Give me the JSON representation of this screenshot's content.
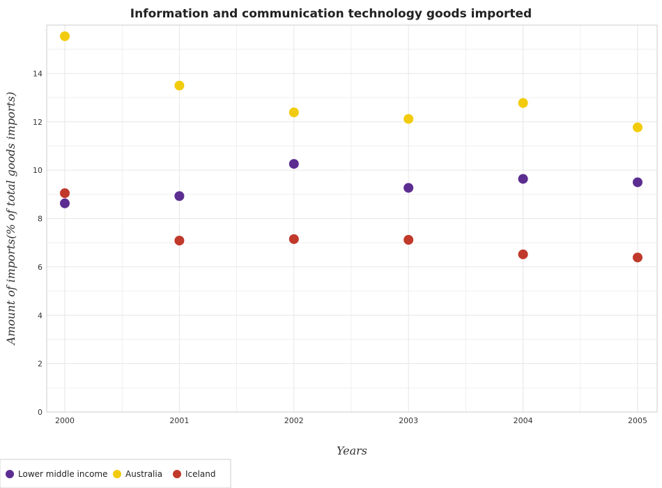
{
  "colors": {
    "lower_middle_income": "#5c2d91",
    "australia": "#f2cc0c",
    "iceland": "#c0392b",
    "grid": "#e6e6e6"
  },
  "chart_data": {
    "type": "scatter",
    "title": "Information and communication technology goods imported",
    "xlabel": "Years",
    "ylabel": "Amount of imports(% of total goods imports)",
    "categories": [
      "2000",
      "2001",
      "2002",
      "2003",
      "2004",
      "2005"
    ],
    "ylim": [
      0,
      16
    ],
    "yticks": [
      "0",
      "2",
      "4",
      "6",
      "8",
      "10",
      "12",
      "14"
    ],
    "grid": true,
    "legend_position": "bottom-left",
    "series": [
      {
        "name": "Lower middle income",
        "color_key": "lower_middle_income",
        "values": [
          8.63,
          8.93,
          10.26,
          9.27,
          9.64,
          9.5
        ]
      },
      {
        "name": "Australia",
        "color_key": "australia",
        "values": [
          15.54,
          13.5,
          12.39,
          12.12,
          12.78,
          11.77
        ]
      },
      {
        "name": "Iceland",
        "color_key": "iceland",
        "values": [
          9.05,
          7.09,
          7.15,
          7.12,
          6.52,
          6.39
        ]
      }
    ]
  }
}
